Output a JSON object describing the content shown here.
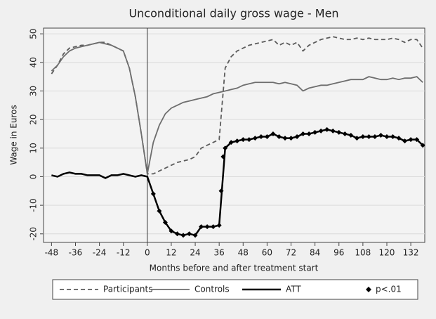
{
  "chart_data": {
    "type": "line",
    "title": "Unconditional daily gross wage - Men",
    "x_label": "Months before and after treatment start",
    "y_label": "Wage in Euros",
    "x": [
      -48,
      -45,
      -42,
      -39,
      -36,
      -33,
      -30,
      -27,
      -24,
      -21,
      -18,
      -15,
      -12,
      -9,
      -6,
      -3,
      0,
      3,
      6,
      9,
      12,
      15,
      18,
      21,
      24,
      27,
      30,
      33,
      36,
      39,
      42,
      45,
      48,
      51,
      54,
      57,
      60,
      63,
      66,
      69,
      72,
      75,
      78,
      81,
      84,
      87,
      90,
      93,
      96,
      99,
      102,
      105,
      108,
      111,
      114,
      117,
      120,
      123,
      126,
      129,
      132,
      135,
      138
    ],
    "series": [
      {
        "name": "Participants",
        "color": "#5c5c5c",
        "dash": true,
        "values": [
          36,
          39,
          43,
          45,
          45.5,
          46,
          46,
          46.5,
          47,
          47,
          46,
          45,
          44,
          38,
          28,
          15,
          1,
          1,
          2,
          3,
          4,
          5,
          5.5,
          6,
          7,
          10,
          11,
          12,
          13,
          38,
          42,
          44,
          45,
          46,
          46.5,
          47,
          47.5,
          48,
          46,
          47,
          46,
          47,
          44,
          46,
          47,
          48,
          48.5,
          49,
          48.5,
          48,
          48,
          48.5,
          48,
          48.5,
          48,
          48,
          48,
          48.5,
          48,
          47,
          48,
          48,
          45
        ]
      },
      {
        "name": "Controls",
        "color": "#6e6e6e",
        "values": [
          37,
          39,
          42,
          44,
          45,
          45.5,
          46,
          46.5,
          47,
          46.5,
          46,
          45,
          44,
          38,
          28,
          15,
          1,
          12,
          18,
          22,
          24,
          25,
          26,
          26.5,
          27,
          27.5,
          28,
          29,
          29.5,
          30,
          30.5,
          31,
          32,
          32.5,
          33,
          33,
          33,
          33,
          32.5,
          33,
          32.5,
          32,
          30,
          31,
          31.5,
          32,
          32,
          32.5,
          33,
          33.5,
          34,
          34,
          34,
          35,
          34.5,
          34,
          34,
          34.5,
          34,
          34.5,
          34.5,
          35,
          33
        ]
      },
      {
        "name": "ATT",
        "color": "#000000",
        "thick": true,
        "values": [
          0.5,
          0,
          1,
          1.5,
          1,
          1,
          0.5,
          0.5,
          0.5,
          -0.5,
          0.5,
          0.5,
          1,
          0.5,
          0,
          0.5,
          0,
          -6,
          -12,
          -16,
          -19,
          -20,
          -20.5,
          -20,
          -20.5,
          -17.5,
          -17.5,
          -17.5,
          -17,
          10,
          12,
          12.5,
          13,
          13,
          13.5,
          14,
          14,
          15,
          14,
          13.5,
          13.5,
          14,
          15,
          15,
          15.5,
          16,
          16.5,
          16,
          15.5,
          15,
          14.5,
          13.5,
          14,
          14,
          14,
          14.5,
          14,
          14,
          13.5,
          12.5,
          13,
          13,
          11
        ]
      },
      {
        "name": "p<.01",
        "color": "#000000",
        "type": "scatter",
        "x": [
          3,
          6,
          9,
          12,
          15,
          18,
          21,
          24,
          27,
          30,
          33,
          36,
          37,
          38,
          39,
          42,
          45,
          48,
          51,
          54,
          57,
          60,
          63,
          66,
          69,
          72,
          75,
          78,
          81,
          84,
          87,
          90,
          93,
          96,
          99,
          102,
          105,
          108,
          111,
          114,
          117,
          120,
          123,
          126,
          129,
          132,
          135,
          138
        ],
        "values": [
          -6,
          -12,
          -16,
          -19,
          -20,
          -20.5,
          -20,
          -20.5,
          -17.5,
          -17.5,
          -17.5,
          -17,
          -5,
          7,
          10,
          12,
          12.5,
          13,
          13,
          13.5,
          14,
          14,
          15,
          14,
          13.5,
          13.5,
          14,
          15,
          15,
          15.5,
          16,
          16.5,
          16,
          15.5,
          15,
          14.5,
          13.5,
          14,
          14,
          14,
          14.5,
          14,
          14,
          13.5,
          12.5,
          13,
          13,
          11
        ]
      }
    ],
    "xlim": [
      -52,
      139
    ],
    "ylim": [
      -23,
      52
    ],
    "xticks": [
      -48,
      -36,
      -24,
      -12,
      0,
      12,
      24,
      36,
      48,
      60,
      72,
      84,
      96,
      108,
      120,
      132
    ],
    "yticks": [
      -20,
      -10,
      0,
      10,
      20,
      30,
      40,
      50
    ],
    "grid": true,
    "xline": 0,
    "legend": "bottom"
  }
}
